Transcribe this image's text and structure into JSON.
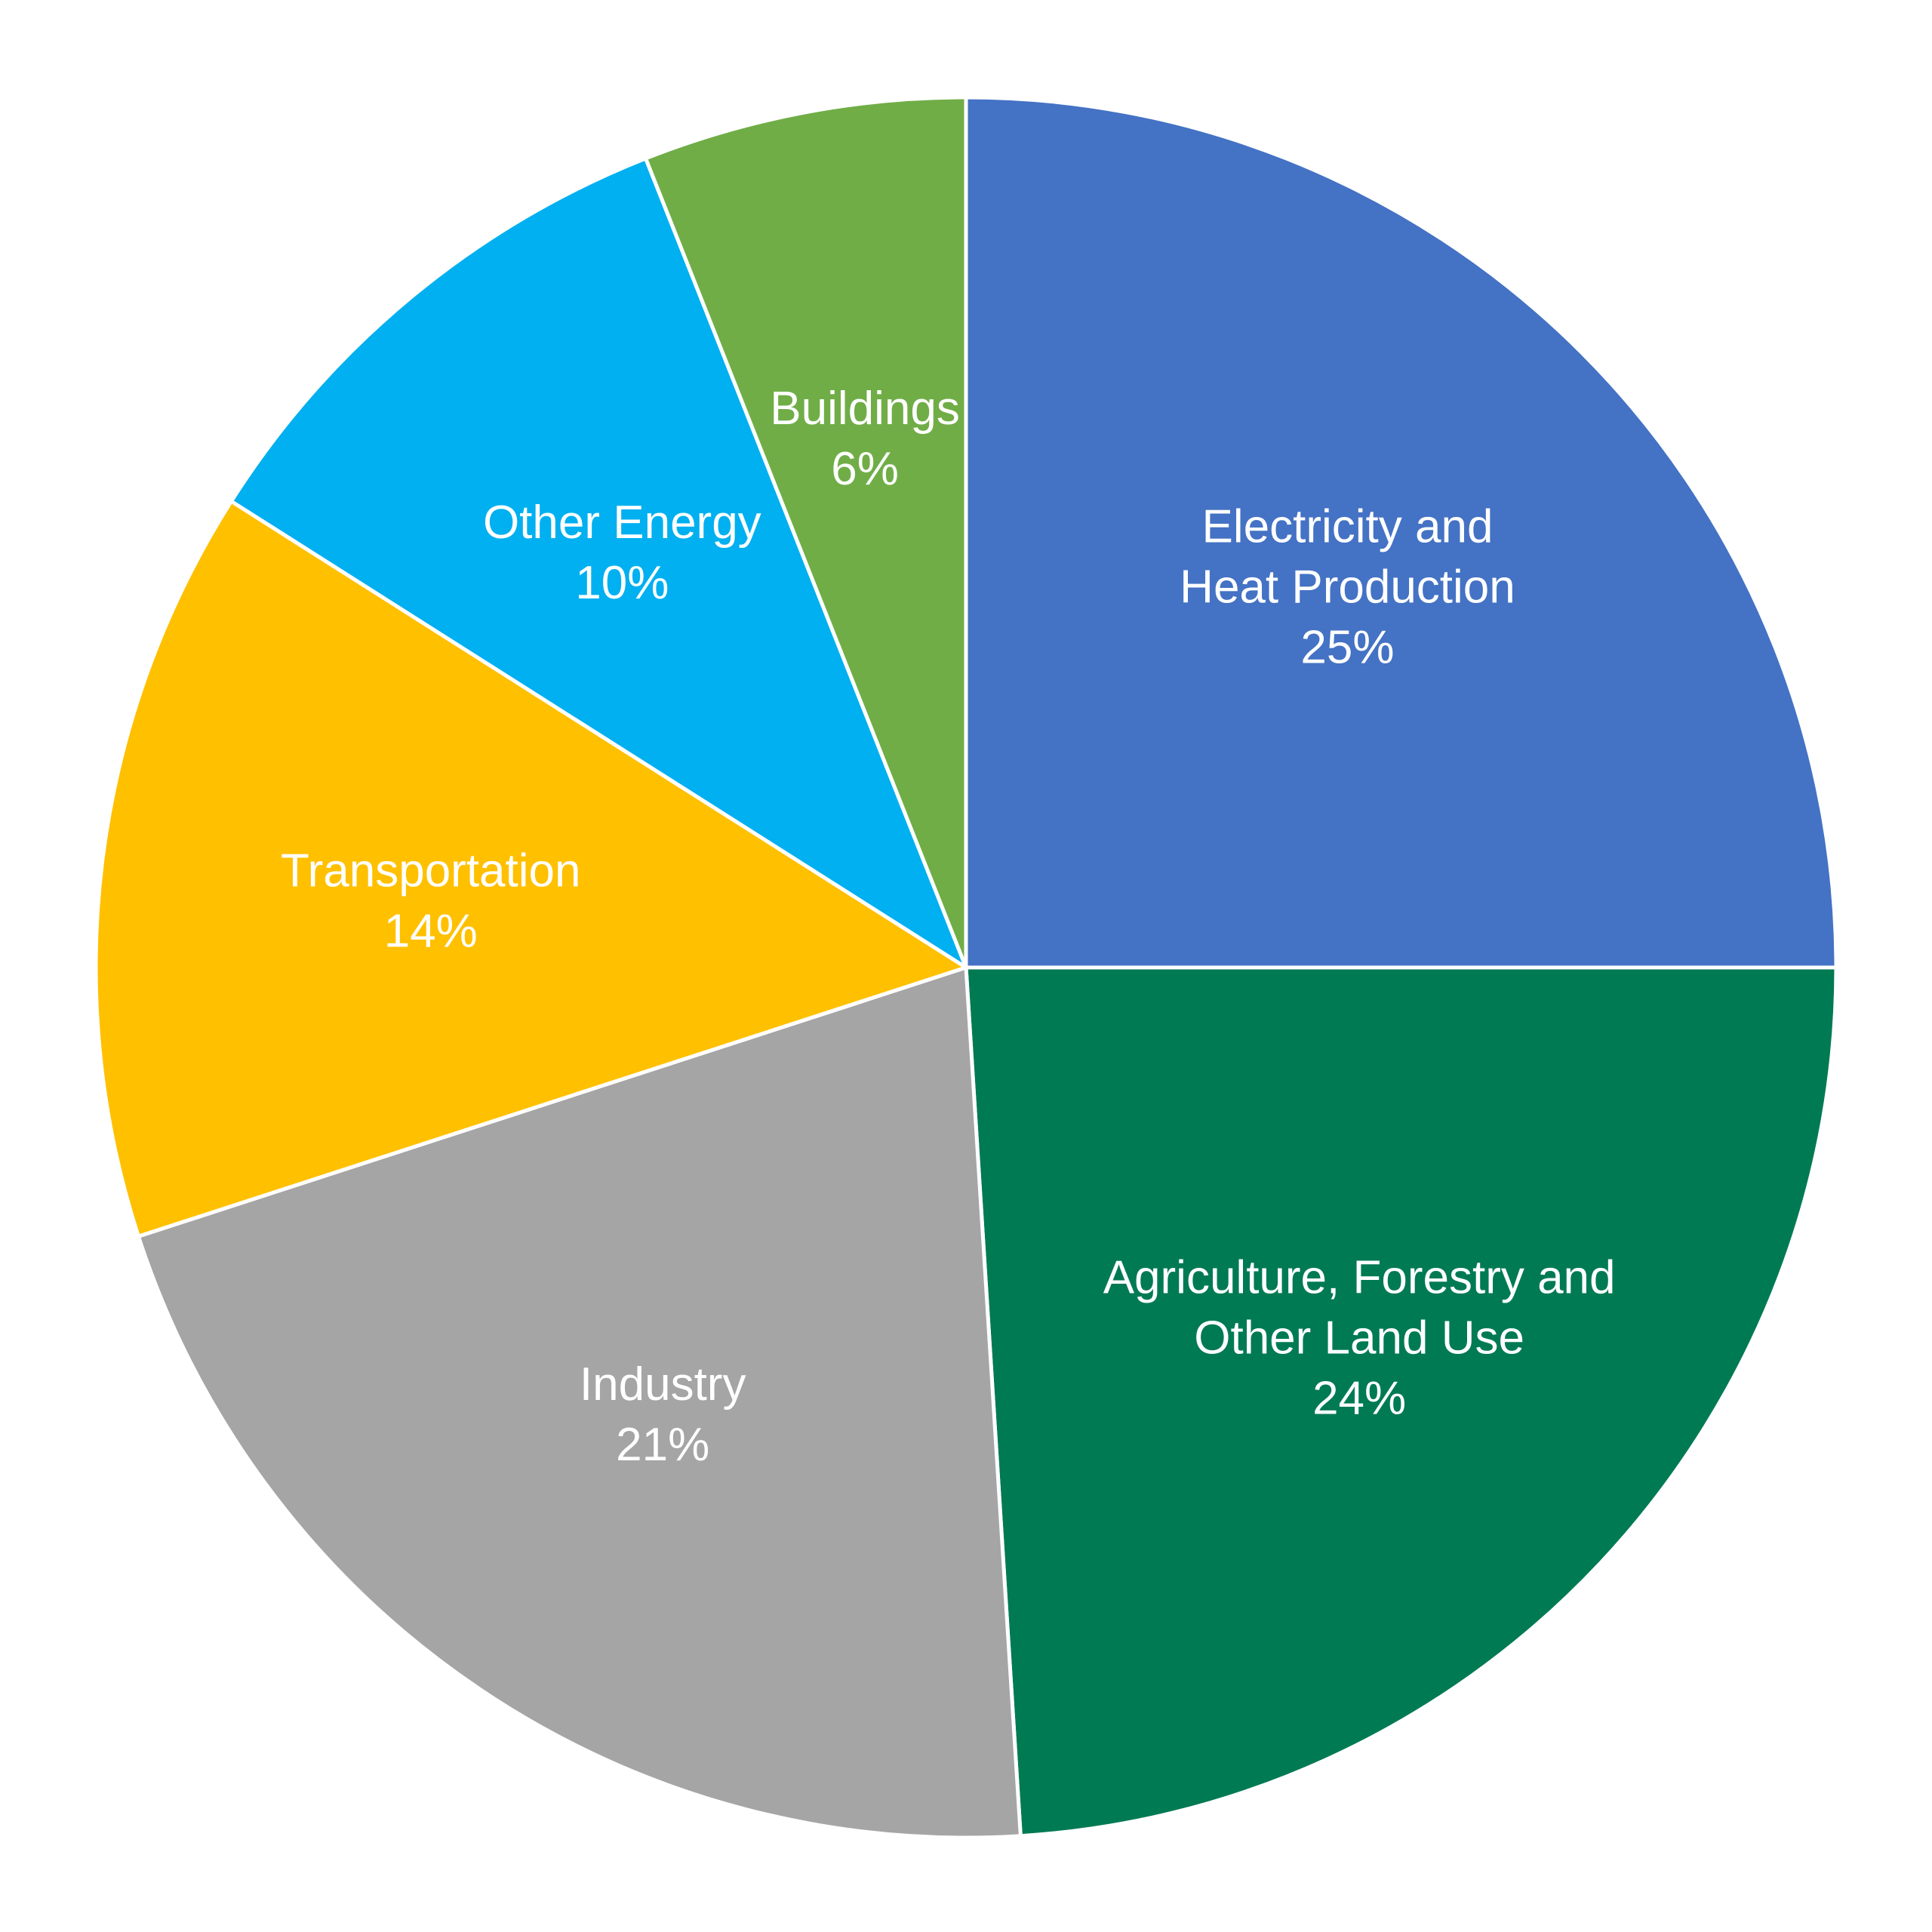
{
  "chart_data": {
    "type": "pie",
    "slices": [
      {
        "label_lines": [
          "Electricity and",
          "Heat Production"
        ],
        "value_label": "25%",
        "value": 25,
        "color": "#4472C4"
      },
      {
        "label_lines": [
          "Agriculture, Forestry and",
          "Other Land Use"
        ],
        "value_label": "24%",
        "value": 24,
        "color": "#007A53"
      },
      {
        "label_lines": [
          "Industry"
        ],
        "value_label": "21%",
        "value": 21,
        "color": "#A5A5A5"
      },
      {
        "label_lines": [
          "Transportation"
        ],
        "value_label": "14%",
        "value": 14,
        "color": "#FFC000"
      },
      {
        "label_lines": [
          "Other Energy"
        ],
        "value_label": "10%",
        "value": 10,
        "color": "#00B0F0"
      },
      {
        "label_lines": [
          "Buildings"
        ],
        "value_label": "6%",
        "value": 6,
        "color": "#70AD47"
      }
    ],
    "start_angle": "12 o'clock",
    "direction": "clockwise",
    "legend": "none",
    "label_position": "inside"
  }
}
